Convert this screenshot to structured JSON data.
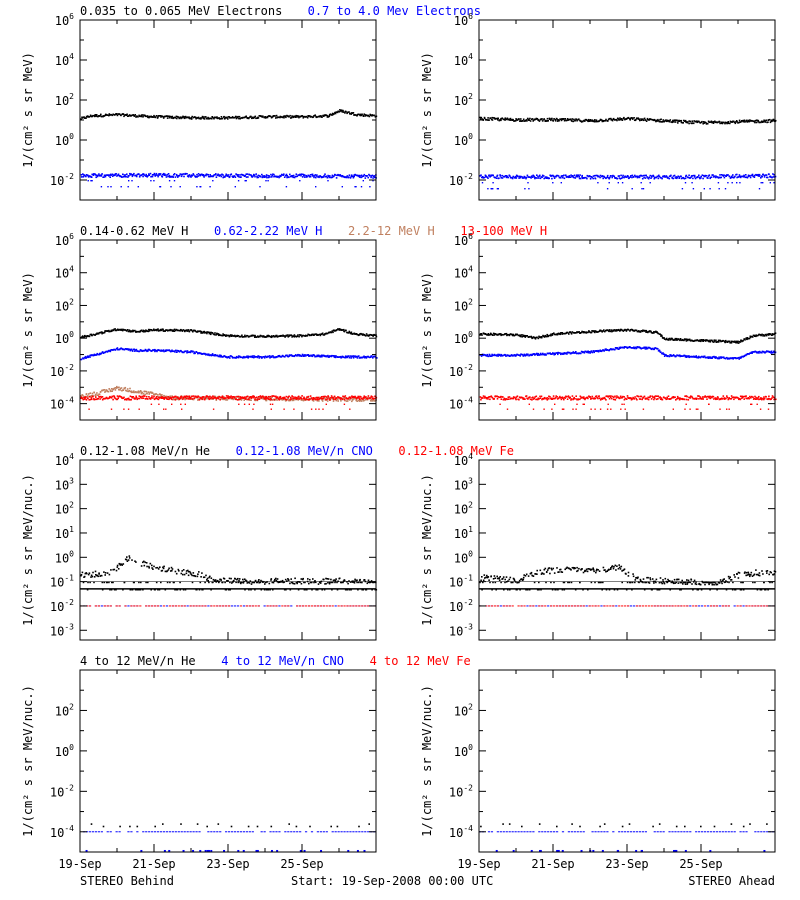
{
  "colors": {
    "black": "#000000",
    "blue": "#0000ff",
    "tan": "#c08060",
    "red": "#ff0000"
  },
  "footer": {
    "left": "STEREO Behind",
    "center": "Start: 19-Sep-2008 00:00 UTC",
    "right": "STEREO Ahead"
  },
  "chart_data": [
    {
      "type": "scatter",
      "row": 0,
      "spacecraft": "STEREO Behind",
      "ylabel": "1/(cm² s sr MeV)",
      "yscale": "log",
      "ylim_log10": [
        -3,
        6
      ],
      "tick_exponents": [
        -2,
        0,
        2,
        4,
        6
      ],
      "x_tick_labels": [
        "19-Sep",
        "21-Sep",
        "23-Sep",
        "25-Sep"
      ],
      "x_days": [
        0,
        8
      ],
      "x_ticks_days": [
        0,
        2,
        4,
        6
      ],
      "legend": [
        {
          "name": "0.035 to 0.065 MeV Electrons",
          "color": "#000000"
        },
        {
          "name": "0.7 to 4.0 Mev Electrons",
          "color": "#0000ff"
        }
      ],
      "series": [
        {
          "name": "0.035 to 0.065 MeV Electrons",
          "color": "#000000",
          "log_profile": [
            [
              0,
              1.1
            ],
            [
              0.3,
              1.25
            ],
            [
              1,
              1.3
            ],
            [
              2,
              1.2
            ],
            [
              3,
              1.15
            ],
            [
              4,
              1.15
            ],
            [
              5,
              1.2
            ],
            [
              6,
              1.2
            ],
            [
              6.7,
              1.25
            ],
            [
              7,
              1.5
            ],
            [
              7.5,
              1.3
            ],
            [
              8,
              1.25
            ]
          ],
          "scatter": 0.06
        },
        {
          "name": "0.7 to 4.0 Mev Electrons",
          "color": "#0000ff",
          "log_profile": [
            [
              0,
              -1.75
            ],
            [
              2,
              -1.72
            ],
            [
              4,
              -1.75
            ],
            [
              6,
              -1.75
            ],
            [
              8,
              -1.78
            ]
          ],
          "scatter": 0.09,
          "dips": [
            -2.0,
            -2.3
          ]
        }
      ]
    },
    {
      "type": "scatter",
      "row": 0,
      "spacecraft": "STEREO Ahead",
      "ylabel": "1/(cm² s sr MeV)",
      "yscale": "log",
      "ylim_log10": [
        -3,
        6
      ],
      "tick_exponents": [
        -2,
        0,
        2,
        4,
        6
      ],
      "x_tick_labels": [
        "19-Sep",
        "21-Sep",
        "23-Sep",
        "25-Sep"
      ],
      "x_days": [
        0,
        8
      ],
      "x_ticks_days": [
        0,
        2,
        4,
        6
      ],
      "series": [
        {
          "name": "0.035 to 0.065 MeV Electrons",
          "color": "#000000",
          "log_profile": [
            [
              0,
              1.1
            ],
            [
              1,
              1.05
            ],
            [
              2,
              1.05
            ],
            [
              3,
              1.0
            ],
            [
              4,
              1.1
            ],
            [
              5,
              1.0
            ],
            [
              6,
              0.9
            ],
            [
              7,
              0.95
            ],
            [
              8,
              1.0
            ]
          ],
          "scatter": 0.07
        },
        {
          "name": "0.7 to 4.0 Mev Electrons",
          "color": "#0000ff",
          "log_profile": [
            [
              0,
              -1.8
            ],
            [
              2,
              -1.8
            ],
            [
              4,
              -1.82
            ],
            [
              6,
              -1.8
            ],
            [
              8,
              -1.75
            ]
          ],
          "scatter": 0.09,
          "dips": [
            -2.1,
            -2.4
          ]
        }
      ]
    },
    {
      "type": "scatter",
      "row": 1,
      "spacecraft": "STEREO Behind",
      "ylabel": "1/(cm² s sr MeV)",
      "yscale": "log",
      "ylim_log10": [
        -5,
        6
      ],
      "tick_exponents": [
        -4,
        -2,
        0,
        2,
        4,
        6
      ],
      "x_tick_labels": [
        "19-Sep",
        "21-Sep",
        "23-Sep",
        "25-Sep"
      ],
      "x_days": [
        0,
        8
      ],
      "x_ticks_days": [
        0,
        2,
        4,
        6
      ],
      "legend": [
        {
          "name": "0.14-0.62 MeV H",
          "color": "#000000"
        },
        {
          "name": "0.62-2.22 MeV H",
          "color": "#0000ff"
        },
        {
          "name": "2.2-12 MeV H",
          "color": "#c08060"
        },
        {
          "name": "13-100 MeV H",
          "color": "#ff0000"
        }
      ],
      "series": [
        {
          "name": "0.14-0.62 MeV H",
          "color": "#000000",
          "log_profile": [
            [
              0,
              0.1
            ],
            [
              0.5,
              0.35
            ],
            [
              1,
              0.6
            ],
            [
              1.5,
              0.45
            ],
            [
              2,
              0.55
            ],
            [
              3,
              0.5
            ],
            [
              4,
              0.2
            ],
            [
              5,
              0.15
            ],
            [
              6,
              0.2
            ],
            [
              6.6,
              0.3
            ],
            [
              7,
              0.6
            ],
            [
              7.4,
              0.3
            ],
            [
              8,
              0.2
            ]
          ],
          "scatter": 0.06
        },
        {
          "name": "0.62-2.22 MeV H",
          "color": "#0000ff",
          "log_profile": [
            [
              0,
              -1.2
            ],
            [
              0.5,
              -0.9
            ],
            [
              1,
              -0.6
            ],
            [
              1.5,
              -0.7
            ],
            [
              2,
              -0.7
            ],
            [
              3,
              -0.8
            ],
            [
              4,
              -1.1
            ],
            [
              5,
              -1.1
            ],
            [
              6,
              -1.0
            ],
            [
              7,
              -1.1
            ],
            [
              8,
              -1.1
            ]
          ],
          "scatter": 0.06
        },
        {
          "name": "2.2-12 MeV H",
          "color": "#c08060",
          "log_profile": [
            [
              0,
              -3.5
            ],
            [
              0.5,
              -3.3
            ],
            [
              1,
              -3.0
            ],
            [
              1.5,
              -3.2
            ],
            [
              2,
              -3.4
            ],
            [
              2.5,
              -3.6
            ],
            [
              8,
              -3.7
            ]
          ],
          "scatter": 0.12
        },
        {
          "name": "13-100 MeV H",
          "color": "#ff0000",
          "log_profile": [
            [
              0,
              -3.6
            ],
            [
              4,
              -3.6
            ],
            [
              8,
              -3.6
            ]
          ],
          "scatter": 0.12,
          "dips": [
            -4.0,
            -4.3
          ]
        }
      ]
    },
    {
      "type": "scatter",
      "row": 1,
      "spacecraft": "STEREO Ahead",
      "ylabel": "1/(cm² s sr MeV)",
      "yscale": "log",
      "ylim_log10": [
        -5,
        6
      ],
      "tick_exponents": [
        -4,
        -2,
        0,
        2,
        4,
        6
      ],
      "x_tick_labels": [
        "19-Sep",
        "21-Sep",
        "23-Sep",
        "25-Sep"
      ],
      "x_days": [
        0,
        8
      ],
      "x_ticks_days": [
        0,
        2,
        4,
        6
      ],
      "series": [
        {
          "name": "0.14-0.62 MeV H",
          "color": "#000000",
          "log_profile": [
            [
              0,
              0.3
            ],
            [
              1,
              0.25
            ],
            [
              1.5,
              0.05
            ],
            [
              2,
              0.3
            ],
            [
              3,
              0.45
            ],
            [
              4,
              0.55
            ],
            [
              4.8,
              0.4
            ],
            [
              5,
              0.0
            ],
            [
              6,
              -0.1
            ],
            [
              7,
              -0.2
            ],
            [
              7.4,
              0.2
            ],
            [
              8,
              0.3
            ]
          ],
          "scatter": 0.06
        },
        {
          "name": "0.62-2.22 MeV H",
          "color": "#0000ff",
          "log_profile": [
            [
              0,
              -1.0
            ],
            [
              1,
              -1.0
            ],
            [
              2,
              -0.9
            ],
            [
              3,
              -0.8
            ],
            [
              4,
              -0.5
            ],
            [
              4.8,
              -0.6
            ],
            [
              5,
              -1.0
            ],
            [
              6,
              -1.1
            ],
            [
              7,
              -1.2
            ],
            [
              7.4,
              -0.8
            ],
            [
              8,
              -0.8
            ]
          ],
          "scatter": 0.06
        },
        {
          "name": "13-100 MeV H",
          "color": "#ff0000",
          "log_profile": [
            [
              0,
              -3.6
            ],
            [
              4,
              -3.6
            ],
            [
              8,
              -3.6
            ]
          ],
          "scatter": 0.12,
          "dips": [
            -4.0,
            -4.3
          ]
        }
      ]
    },
    {
      "type": "scatter",
      "row": 2,
      "spacecraft": "STEREO Behind",
      "ylabel": "1/(cm² s sr MeV/nuc.)",
      "yscale": "log",
      "ylim_log10": [
        -3.4,
        4
      ],
      "tick_exponents": [
        -3,
        -2,
        -1,
        0,
        1,
        2,
        3,
        4
      ],
      "x_tick_labels": [
        "19-Sep",
        "21-Sep",
        "23-Sep",
        "25-Sep"
      ],
      "x_days": [
        0,
        8
      ],
      "x_ticks_days": [
        0,
        2,
        4,
        6
      ],
      "legend": [
        {
          "name": "0.12-1.08 MeV/n He",
          "color": "#000000"
        },
        {
          "name": "0.12-1.08 MeV/n CNO",
          "color": "#0000ff"
        },
        {
          "name": "0.12-1.08 MeV Fe",
          "color": "#ff0000"
        }
      ],
      "series": [
        {
          "name": "0.12-1.08 MeV/n He",
          "color": "#000000",
          "log_profile": [
            [
              0,
              -0.7
            ],
            [
              0.8,
              -0.6
            ],
            [
              1.3,
              0.0
            ],
            [
              1.8,
              -0.3
            ],
            [
              2.5,
              -0.5
            ],
            [
              3.3,
              -0.7
            ],
            [
              3.6,
              -0.95
            ],
            [
              8,
              -0.95
            ]
          ],
          "scatter": 0.12,
          "floor_lines": [
            -1.0,
            -1.3
          ]
        },
        {
          "name": "0.12-1.08 MeV/n CNO",
          "color": "#0000ff",
          "log_profile": [
            [
              0,
              -2.0
            ],
            [
              8,
              -2.0
            ]
          ],
          "scatter": 0.02,
          "dashed_baseline": -2.0
        },
        {
          "name": "0.12-1.08 MeV Fe",
          "color": "#ff0000",
          "log_profile": [
            [
              0,
              -2.0
            ],
            [
              8,
              -2.0
            ]
          ],
          "scatter": 0.01,
          "dashed_baseline": -2.0
        }
      ]
    },
    {
      "type": "scatter",
      "row": 2,
      "spacecraft": "STEREO Ahead",
      "ylabel": "1/(cm² s sr MeV/nuc.)",
      "yscale": "log",
      "ylim_log10": [
        -3.4,
        4
      ],
      "tick_exponents": [
        -3,
        -2,
        -1,
        0,
        1,
        2,
        3,
        4
      ],
      "x_tick_labels": [
        "19-Sep",
        "21-Sep",
        "23-Sep",
        "25-Sep"
      ],
      "x_days": [
        0,
        8
      ],
      "x_ticks_days": [
        0,
        2,
        4,
        6
      ],
      "series": [
        {
          "name": "0.12-1.08 MeV/n He",
          "color": "#000000",
          "log_profile": [
            [
              0,
              -0.8
            ],
            [
              1,
              -0.9
            ],
            [
              1.5,
              -0.6
            ],
            [
              2,
              -0.5
            ],
            [
              3,
              -0.5
            ],
            [
              3.8,
              -0.4
            ],
            [
              4.3,
              -0.9
            ],
            [
              6.5,
              -1.0
            ],
            [
              7,
              -0.7
            ],
            [
              7.5,
              -0.6
            ],
            [
              8,
              -0.6
            ]
          ],
          "scatter": 0.12,
          "floor_lines": [
            -1.0,
            -1.3
          ]
        },
        {
          "name": "0.12-1.08 MeV/n CNO",
          "color": "#0000ff",
          "log_profile": [
            [
              0,
              -2.0
            ],
            [
              8,
              -2.0
            ]
          ],
          "scatter": 0.02,
          "dashed_baseline": -2.0
        },
        {
          "name": "0.12-1.08 MeV Fe",
          "color": "#ff0000",
          "log_profile": [
            [
              0,
              -2.0
            ],
            [
              8,
              -2.0
            ]
          ],
          "scatter": 0.01,
          "dashed_baseline": -2.0
        }
      ]
    },
    {
      "type": "scatter",
      "row": 3,
      "spacecraft": "STEREO Behind",
      "ylabel": "1/(cm² s sr MeV/nuc.)",
      "yscale": "log",
      "ylim_log10": [
        -5,
        4
      ],
      "tick_exponents": [
        -4,
        -2,
        0,
        2
      ],
      "x_tick_labels": [
        "19-Sep",
        "21-Sep",
        "23-Sep",
        "25-Sep"
      ],
      "x_days": [
        0,
        8
      ],
      "x_ticks_days": [
        0,
        2,
        4,
        6
      ],
      "legend": [
        {
          "name": "4 to 12 MeV/n He",
          "color": "#000000"
        },
        {
          "name": "4 to 12 MeV/n CNO",
          "color": "#0000ff"
        },
        {
          "name": "4 to 12 MeV Fe",
          "color": "#ff0000"
        }
      ],
      "series": [
        {
          "name": "4 to 12 MeV/n He",
          "color": "#000000",
          "log_profile": [
            [
              0,
              -3.7
            ],
            [
              8,
              -3.7
            ]
          ],
          "scatter": 0.0,
          "sparse": true
        },
        {
          "name": "4 to 12 MeV/n CNO",
          "color": "#0000ff",
          "log_profile": [
            [
              0,
              -4.0
            ],
            [
              8,
              -4.0
            ]
          ],
          "scatter": 0.0,
          "dashed_baseline": -4.0,
          "low_dots": -4.9
        }
      ]
    },
    {
      "type": "scatter",
      "row": 3,
      "spacecraft": "STEREO Ahead",
      "ylabel": "1/(cm² s sr MeV/nuc.)",
      "yscale": "log",
      "ylim_log10": [
        -5,
        4
      ],
      "tick_exponents": [
        -4,
        -2,
        0,
        2
      ],
      "x_tick_labels": [
        "19-Sep",
        "21-Sep",
        "23-Sep",
        "25-Sep"
      ],
      "x_days": [
        0,
        8
      ],
      "x_ticks_days": [
        0,
        2,
        4,
        6
      ],
      "series": [
        {
          "name": "4 to 12 MeV/n He",
          "color": "#000000",
          "log_profile": [
            [
              0,
              -3.7
            ],
            [
              8,
              -3.7
            ]
          ],
          "scatter": 0.0,
          "sparse": true
        },
        {
          "name": "4 to 12 MeV/n CNO",
          "color": "#0000ff",
          "log_profile": [
            [
              0,
              -4.0
            ],
            [
              8,
              -4.0
            ]
          ],
          "scatter": 0.0,
          "dashed_baseline": -4.0,
          "low_dots": -4.9
        }
      ]
    }
  ]
}
